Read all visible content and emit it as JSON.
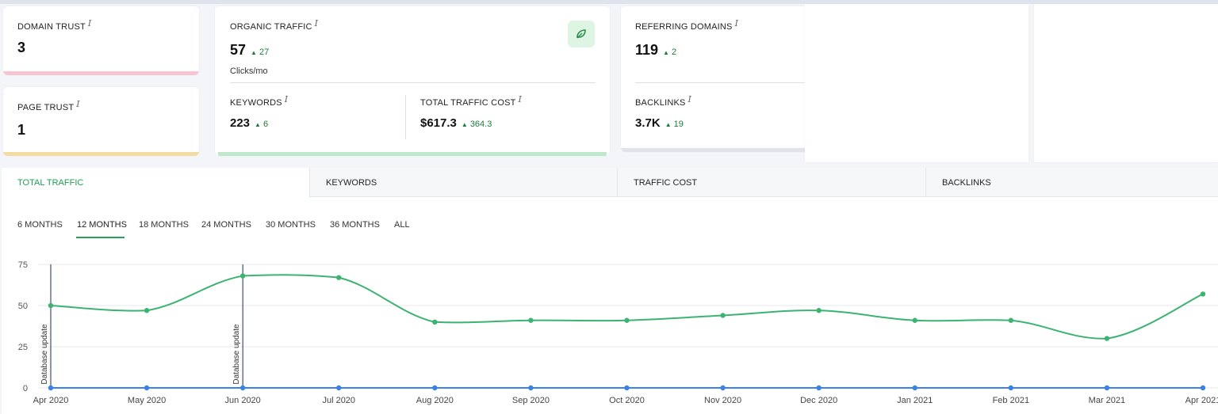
{
  "metrics": {
    "domain_trust": {
      "label": "DOMAIN TRUST",
      "info": "i",
      "value": "3",
      "bar_color": "#f7c5d2"
    },
    "page_trust": {
      "label": "PAGE TRUST",
      "info": "i",
      "value": "1",
      "bar_color": "#f2dca2"
    },
    "organic_traffic": {
      "label": "ORGANIC TRAFFIC",
      "info": "i",
      "value": "57",
      "delta": "27",
      "unit": "Clicks/mo",
      "bar_color": "#bfe9cb"
    },
    "keywords": {
      "label": "KEYWORDS",
      "info": "i",
      "value": "223",
      "delta": "6"
    },
    "total_traffic_cost": {
      "label": "TOTAL TRAFFIC COST",
      "info": "i",
      "value": "$617.3",
      "delta": "364.3"
    },
    "referring_domains": {
      "label": "REFERRING DOMAINS",
      "info": "i",
      "value": "119",
      "delta": "2",
      "bar_color": "#e1e3ea"
    },
    "backlinks": {
      "label": "BACKLINKS",
      "info": "i",
      "value": "3.7K",
      "delta": "19"
    }
  },
  "tabs": [
    {
      "label": "TOTAL TRAFFIC",
      "active": true
    },
    {
      "label": "KEYWORDS",
      "active": false
    },
    {
      "label": "TRAFFIC COST",
      "active": false
    },
    {
      "label": "BACKLINKS",
      "active": false
    }
  ],
  "periods": [
    {
      "label": "6 MONTHS"
    },
    {
      "label": "12 MONTHS",
      "active": true
    },
    {
      "label": "18 MONTHS"
    },
    {
      "label": "24 MONTHS"
    },
    {
      "label": "30 MONTHS"
    },
    {
      "label": "36 MONTHS"
    },
    {
      "label": "ALL"
    }
  ],
  "icons": {
    "organic_badge": "leaf-icon"
  },
  "colors": {
    "accent": "#2aa05c",
    "series_traffic": "#3cb371",
    "series_secondary": "#3b82e6"
  },
  "chart_data": {
    "type": "line",
    "x": [
      "Apr 2020",
      "May 2020",
      "Jun 2020",
      "Jul 2020",
      "Aug 2020",
      "Sep 2020",
      "Oct 2020",
      "Nov 2020",
      "Dec 2020",
      "Jan 2021",
      "Feb 2021",
      "Mar 2021",
      "Apr 2021"
    ],
    "series": [
      {
        "values": [
          50,
          47,
          68,
          67,
          40,
          41,
          41,
          44,
          47,
          41,
          41,
          30,
          57
        ],
        "color": "#3cb371"
      },
      {
        "values": [
          0,
          0,
          0,
          0,
          0,
          0,
          0,
          0,
          0,
          0,
          0,
          0,
          0
        ],
        "color": "#3b82e6"
      }
    ],
    "yticks": [
      0,
      25,
      50,
      75
    ],
    "ylim": [
      0,
      75
    ],
    "grid": true,
    "annotations": [
      {
        "x": "Apr 2020",
        "text": "Database update"
      },
      {
        "x": "Jun 2020",
        "text": "Database update"
      }
    ]
  }
}
